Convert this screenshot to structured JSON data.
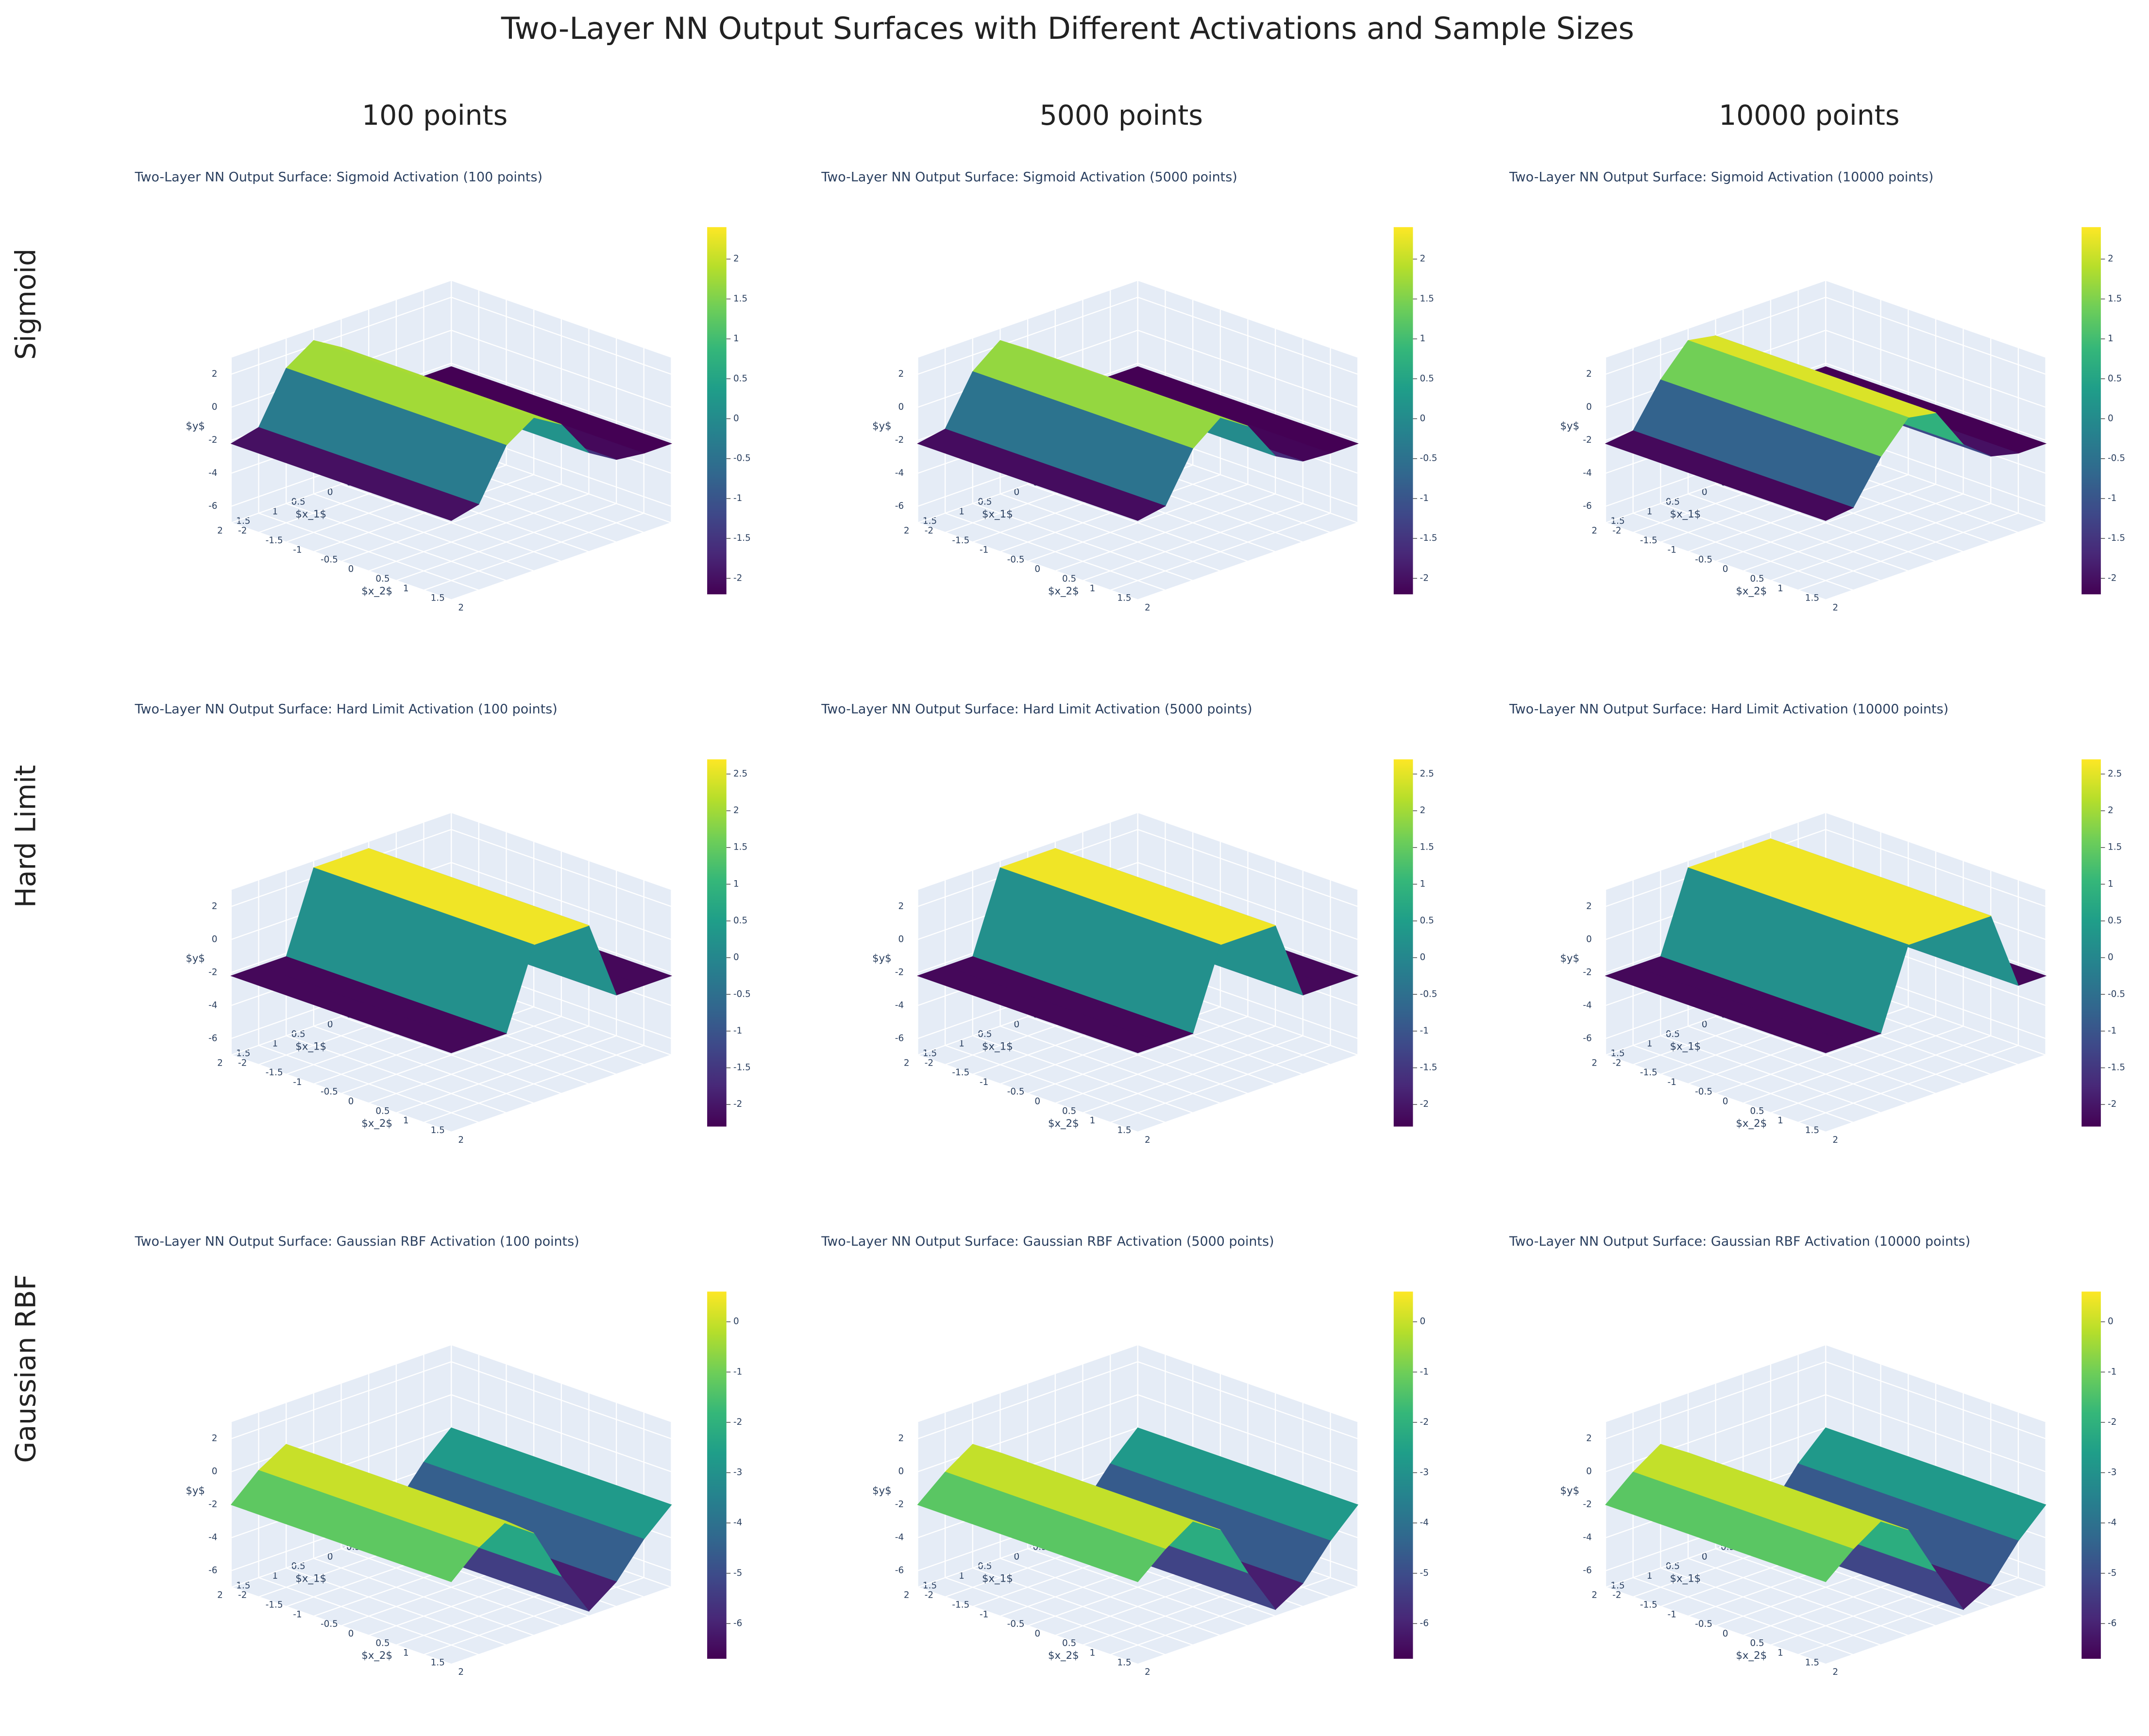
{
  "title": "Two-Layer NN Output Surfaces with Different Activations and Sample Sizes",
  "column_titles": [
    "100 points",
    "5000 points",
    "10000 points"
  ],
  "row_titles": [
    "Sigmoid",
    "Hard Limit",
    "Gaussian RBF"
  ],
  "chart_data": [
    {
      "type": "surface",
      "title": "Two-Layer NN Output Surface: Sigmoid Activation (100 points)",
      "x_label": "$x_1$",
      "y_label": "$x_2$",
      "z_label": "$y$",
      "x": [
        -2,
        -1.5,
        -1,
        -0.5,
        0,
        0.5,
        1,
        1.5,
        2
      ],
      "z": [
        -2.2,
        -2.2,
        -2.0,
        -1.0,
        1.3,
        2.3,
        1.2,
        -1.8,
        -2.2
      ],
      "xlim": [
        -2,
        2
      ],
      "ylim": [
        -2,
        2
      ],
      "zlim": [
        -7,
        3
      ],
      "xticks": [
        -2,
        -1.5,
        -1,
        -0.5,
        0,
        0.5,
        1,
        1.5,
        2
      ],
      "yticks": [
        -2,
        -1.5,
        -1,
        -0.5,
        0,
        0.5,
        1,
        1.5,
        2
      ],
      "zticks": [
        -6,
        -4,
        -2,
        0,
        2
      ],
      "colorbar_lim": [
        -2.2,
        2.4
      ],
      "colorbar_ticks": [
        -2,
        -1.5,
        -1,
        -0.5,
        0,
        0.5,
        1,
        1.5,
        2
      ]
    },
    {
      "type": "surface",
      "title": "Two-Layer NN Output Surface: Sigmoid Activation (5000 points)",
      "x_label": "$x_1$",
      "y_label": "$x_2$",
      "z_label": "$y$",
      "x": [
        -2,
        -1.5,
        -1,
        -0.5,
        0,
        0.5,
        1,
        1.5,
        2
      ],
      "z": [
        -2.2,
        -2.2,
        -2.1,
        -1.2,
        1.2,
        2.3,
        1.0,
        -1.9,
        -2.2
      ],
      "xlim": [
        -2,
        2
      ],
      "ylim": [
        -2,
        2
      ],
      "zlim": [
        -7,
        3
      ],
      "xticks": [
        -2,
        -1.5,
        -1,
        -0.5,
        0,
        0.5,
        1,
        1.5,
        2
      ],
      "yticks": [
        -2,
        -1.5,
        -1,
        -0.5,
        0,
        0.5,
        1,
        1.5,
        2
      ],
      "zticks": [
        -6,
        -4,
        -2,
        0,
        2
      ],
      "colorbar_lim": [
        -2.2,
        2.4
      ],
      "colorbar_ticks": [
        -2,
        -1.5,
        -1,
        -0.5,
        0,
        0.5,
        1,
        1.5,
        2
      ]
    },
    {
      "type": "surface",
      "title": "Two-Layer NN Output Surface: Sigmoid Activation (10000 points)",
      "x_label": "$x_1$",
      "y_label": "$x_2$",
      "z_label": "$y$",
      "x": [
        -2,
        -1.5,
        -1,
        -0.5,
        0,
        0.5,
        1,
        1.5,
        2
      ],
      "z": [
        -2.2,
        -2.2,
        -1.8,
        -0.5,
        2.0,
        2.3,
        0.5,
        -2.0,
        -2.2
      ],
      "xlim": [
        -2,
        2
      ],
      "ylim": [
        -2,
        2
      ],
      "zlim": [
        -7,
        3
      ],
      "xticks": [
        -2,
        -1.5,
        -1,
        -0.5,
        0,
        0.5,
        1,
        1.5,
        2
      ],
      "yticks": [
        -2,
        -1.5,
        -1,
        -0.5,
        0,
        0.5,
        1,
        1.5,
        2
      ],
      "zticks": [
        -6,
        -4,
        -2,
        0,
        2
      ],
      "colorbar_lim": [
        -2.2,
        2.4
      ],
      "colorbar_ticks": [
        -2,
        -1.5,
        -1,
        -0.5,
        0,
        0.5,
        1,
        1.5,
        2
      ]
    },
    {
      "type": "surface",
      "title": "Two-Layer NN Output Surface: Hard Limit Activation (100 points)",
      "x_label": "$x_1$",
      "y_label": "$x_2$",
      "z_label": "$y$",
      "x": [
        -2,
        -1.5,
        -1,
        -0.5,
        0,
        0.5,
        1,
        1.5,
        2
      ],
      "z": [
        -2.2,
        -2.2,
        -2.2,
        2.6,
        2.6,
        2.6,
        -2.2,
        -2.2,
        -2.2
      ],
      "xlim": [
        -2,
        2
      ],
      "ylim": [
        -2,
        2
      ],
      "zlim": [
        -7,
        3
      ],
      "xticks": [
        -2,
        -1.5,
        -1,
        -0.5,
        0,
        0.5,
        1,
        1.5,
        2
      ],
      "yticks": [
        -2,
        -1.5,
        -1,
        -0.5,
        0,
        0.5,
        1,
        1.5,
        2
      ],
      "zticks": [
        -6,
        -4,
        -2,
        0,
        2
      ],
      "colorbar_lim": [
        -2.3,
        2.7
      ],
      "colorbar_ticks": [
        -2,
        -1.5,
        -1,
        -0.5,
        0,
        0.5,
        1,
        1.5,
        2,
        2.5
      ]
    },
    {
      "type": "surface",
      "title": "Two-Layer NN Output Surface: Hard Limit Activation (5000 points)",
      "x_label": "$x_1$",
      "y_label": "$x_2$",
      "z_label": "$y$",
      "x": [
        -2,
        -1.5,
        -1,
        -0.5,
        0,
        0.5,
        1,
        1.5,
        2
      ],
      "z": [
        -2.2,
        -2.2,
        -2.2,
        2.6,
        2.6,
        2.6,
        -2.2,
        -2.2,
        -2.2
      ],
      "xlim": [
        -2,
        2
      ],
      "ylim": [
        -2,
        2
      ],
      "zlim": [
        -7,
        3
      ],
      "xticks": [
        -2,
        -1.5,
        -1,
        -0.5,
        0,
        0.5,
        1,
        1.5,
        2
      ],
      "yticks": [
        -2,
        -1.5,
        -1,
        -0.5,
        0,
        0.5,
        1,
        1.5,
        2
      ],
      "zticks": [
        -6,
        -4,
        -2,
        0,
        2
      ],
      "colorbar_lim": [
        -2.3,
        2.7
      ],
      "colorbar_ticks": [
        -2,
        -1.5,
        -1,
        -0.5,
        0,
        0.5,
        1,
        1.5,
        2,
        2.5
      ]
    },
    {
      "type": "surface",
      "title": "Two-Layer NN Output Surface: Hard Limit Activation (10000 points)",
      "x_label": "$x_1$",
      "y_label": "$x_2$",
      "z_label": "$y$",
      "x": [
        -2,
        -1.5,
        -1,
        -0.5,
        0,
        0.5,
        1,
        1.5,
        2
      ],
      "z": [
        -2.2,
        -2.2,
        2.6,
        2.6,
        2.6,
        2.6,
        -2.2,
        -2.2,
        -2.2
      ],
      "xlim": [
        -2,
        2
      ],
      "ylim": [
        -2,
        2
      ],
      "zlim": [
        -7,
        3
      ],
      "xticks": [
        -2,
        -1.5,
        -1,
        -0.5,
        0,
        0.5,
        1,
        1.5,
        2
      ],
      "yticks": [
        -2,
        -1.5,
        -1,
        -0.5,
        0,
        0.5,
        1,
        1.5,
        2
      ],
      "zticks": [
        -6,
        -4,
        -2,
        0,
        2
      ],
      "colorbar_lim": [
        -2.3,
        2.7
      ],
      "colorbar_ticks": [
        -2,
        -1.5,
        -1,
        -0.5,
        0,
        0.5,
        1,
        1.5,
        2,
        2.5
      ]
    },
    {
      "type": "surface",
      "title": "Two-Layer NN Output Surface: Gaussian RBF Activation (100 points)",
      "x_label": "$x_1$",
      "y_label": "$x_2$",
      "z_label": "$y$",
      "x": [
        -2,
        -1.5,
        -1,
        -0.5,
        0,
        0.5,
        1,
        1.5,
        2
      ],
      "z": [
        -2.0,
        -3.5,
        -5.5,
        -6.7,
        -4.0,
        -0.8,
        0.5,
        -0.5,
        -2.0
      ],
      "xlim": [
        -2,
        2
      ],
      "ylim": [
        -2,
        2
      ],
      "zlim": [
        -7,
        3
      ],
      "xticks": [
        -2,
        -1.5,
        -1,
        -0.5,
        0,
        0.5,
        1,
        1.5,
        2
      ],
      "yticks": [
        -2,
        -1.5,
        -1,
        -0.5,
        0,
        0.5,
        1,
        1.5,
        2
      ],
      "zticks": [
        -6,
        -4,
        -2,
        0,
        2
      ],
      "colorbar_lim": [
        -6.7,
        0.6
      ],
      "colorbar_ticks": [
        -6,
        -5,
        -4,
        -3,
        -2,
        -1,
        0
      ]
    },
    {
      "type": "surface",
      "title": "Two-Layer NN Output Surface: Gaussian RBF Activation (5000 points)",
      "x_label": "$x_1$",
      "y_label": "$x_2$",
      "z_label": "$y$",
      "x": [
        -2,
        -1.5,
        -1,
        -0.5,
        0,
        0.5,
        1,
        1.5,
        2
      ],
      "z": [
        -2.0,
        -3.6,
        -5.6,
        -6.6,
        -3.8,
        -0.6,
        0.5,
        -0.6,
        -2.0
      ],
      "xlim": [
        -2,
        2
      ],
      "ylim": [
        -2,
        2
      ],
      "zlim": [
        -7,
        3
      ],
      "xticks": [
        -2,
        -1.5,
        -1,
        -0.5,
        0,
        0.5,
        1,
        1.5,
        2
      ],
      "yticks": [
        -2,
        -1.5,
        -1,
        -0.5,
        0,
        0.5,
        1,
        1.5,
        2
      ],
      "zticks": [
        -6,
        -4,
        -2,
        0,
        2
      ],
      "colorbar_lim": [
        -6.7,
        0.6
      ],
      "colorbar_ticks": [
        -6,
        -5,
        -4,
        -3,
        -2,
        -1,
        0
      ]
    },
    {
      "type": "surface",
      "title": "Two-Layer NN Output Surface: Gaussian RBF Activation (10000 points)",
      "x_label": "$x_1$",
      "y_label": "$x_2$",
      "z_label": "$y$",
      "x": [
        -2,
        -1.5,
        -1,
        -0.5,
        0,
        0.5,
        1,
        1.5,
        2
      ],
      "z": [
        -2.0,
        -3.6,
        -5.7,
        -6.6,
        -3.7,
        -0.6,
        0.5,
        -0.6,
        -2.0
      ],
      "xlim": [
        -2,
        2
      ],
      "ylim": [
        -2,
        2
      ],
      "zlim": [
        -7,
        3
      ],
      "xticks": [
        -2,
        -1.5,
        -1,
        -0.5,
        0,
        0.5,
        1,
        1.5,
        2
      ],
      "yticks": [
        -2,
        -1.5,
        -1,
        -0.5,
        0,
        0.5,
        1,
        1.5,
        2
      ],
      "zticks": [
        -6,
        -4,
        -2,
        0,
        2
      ],
      "colorbar_lim": [
        -6.7,
        0.6
      ],
      "colorbar_ticks": [
        -6,
        -5,
        -4,
        -3,
        -2,
        -1,
        0
      ]
    }
  ]
}
